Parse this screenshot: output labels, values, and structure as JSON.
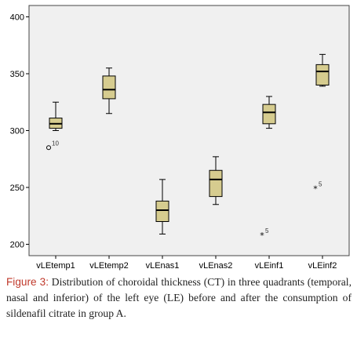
{
  "chart_data": {
    "type": "boxplot",
    "ylim": [
      190,
      410
    ],
    "yticks": [
      200,
      250,
      300,
      350,
      400
    ],
    "grid": false,
    "categories": [
      "vLEtemp1",
      "vLEtemp2",
      "vLEnas1",
      "vLEnas2",
      "vLEinf1",
      "vLEinf2"
    ],
    "boxes": [
      {
        "category": "vLEtemp1",
        "min": 300,
        "q1": 302,
        "median": 306,
        "q3": 311,
        "max": 325,
        "outliers": [
          {
            "value": 285,
            "label": "10",
            "marker": "circle"
          }
        ]
      },
      {
        "category": "vLEtemp2",
        "min": 315,
        "q1": 328,
        "median": 336,
        "q3": 348,
        "max": 355,
        "outliers": []
      },
      {
        "category": "vLEnas1",
        "min": 209,
        "q1": 220,
        "median": 230,
        "q3": 238,
        "max": 257,
        "outliers": []
      },
      {
        "category": "vLEnas2",
        "min": 235,
        "q1": 242,
        "median": 257,
        "q3": 265,
        "max": 277,
        "outliers": []
      },
      {
        "category": "vLEinf1",
        "min": 302,
        "q1": 306,
        "median": 316,
        "q3": 323,
        "max": 330,
        "outliers": [
          {
            "value": 208,
            "label": "5",
            "marker": "star"
          }
        ]
      },
      {
        "category": "vLEinf2",
        "min": 339,
        "q1": 340,
        "median": 352,
        "q3": 358,
        "max": 367,
        "outliers": [
          {
            "value": 249,
            "label": "5",
            "marker": "star"
          }
        ]
      }
    ],
    "colors": {
      "plot_bg": "#f0f0f0",
      "box_fill": "#d6cc8f",
      "stroke": "#000000"
    }
  },
  "caption": {
    "label": "Figure 3:",
    "text": "Distribution of choroidal thickness (CT) in three quadrants (temporal, nasal and inferior) of the left eye (LE) before and after the consumption of sildenafil citrate in group A."
  }
}
